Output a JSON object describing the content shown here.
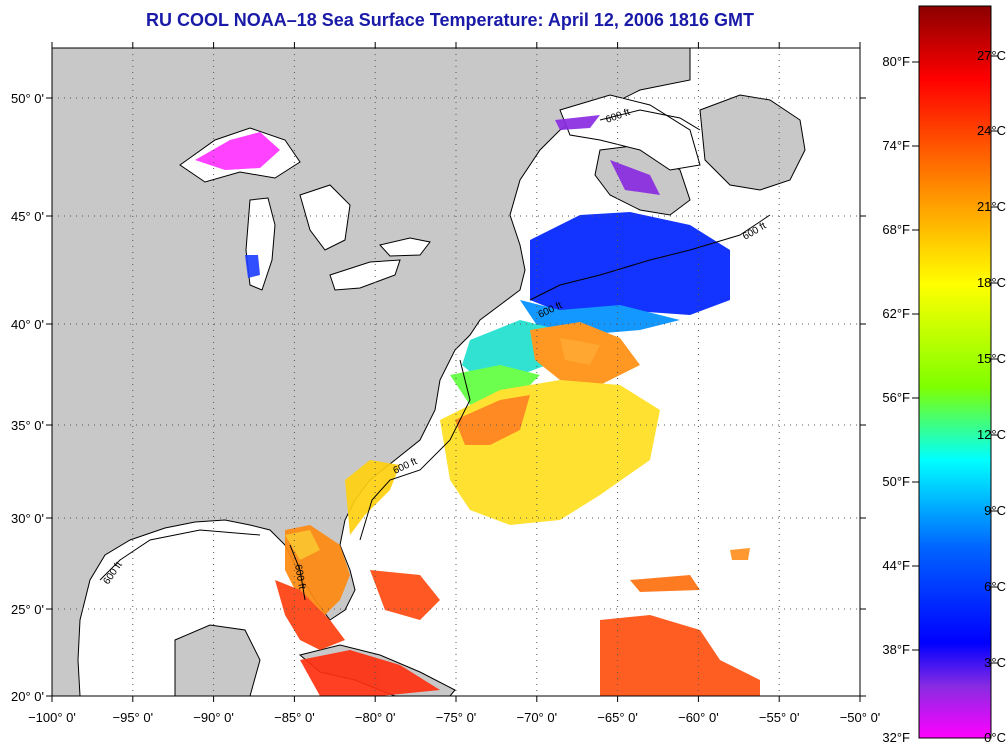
{
  "title": "RU COOL  NOAA–18  Sea Surface Temperature:  April 12, 2006 1816 GMT",
  "map": {
    "lon_ticks": [
      "−100° 0'",
      "−95° 0'",
      "−90° 0'",
      "−85° 0'",
      "−80° 0'",
      "−75° 0'",
      "−70° 0'",
      "−65° 0'",
      "−60° 0'",
      "−55° 0'",
      "−50° 0'"
    ],
    "lat_ticks": [
      "50° 0'",
      "45° 0'",
      "40° 0'",
      "35° 0'",
      "30° 0'",
      "25° 0'",
      "20° 0'"
    ],
    "isobath_label": "600 ft",
    "land_color": "#c8c8c8",
    "grid": true
  },
  "colorbar": {
    "fahrenheit_labels": [
      "80°F",
      "74°F",
      "68°F",
      "62°F",
      "56°F",
      "50°F",
      "44°F",
      "38°F",
      "32°F"
    ],
    "celsius_labels": [
      "27°C",
      "24°C",
      "21°C",
      "18°C",
      "15°C",
      "12°C",
      "9°C",
      "6°C",
      "3°C",
      "0°C"
    ],
    "colors": [
      "#8b0000",
      "#ff0000",
      "#ff8c00",
      "#ffff00",
      "#7fff00",
      "#00ffff",
      "#0064ff",
      "#0000ff",
      "#8a2be2",
      "#ff00ff"
    ]
  }
}
